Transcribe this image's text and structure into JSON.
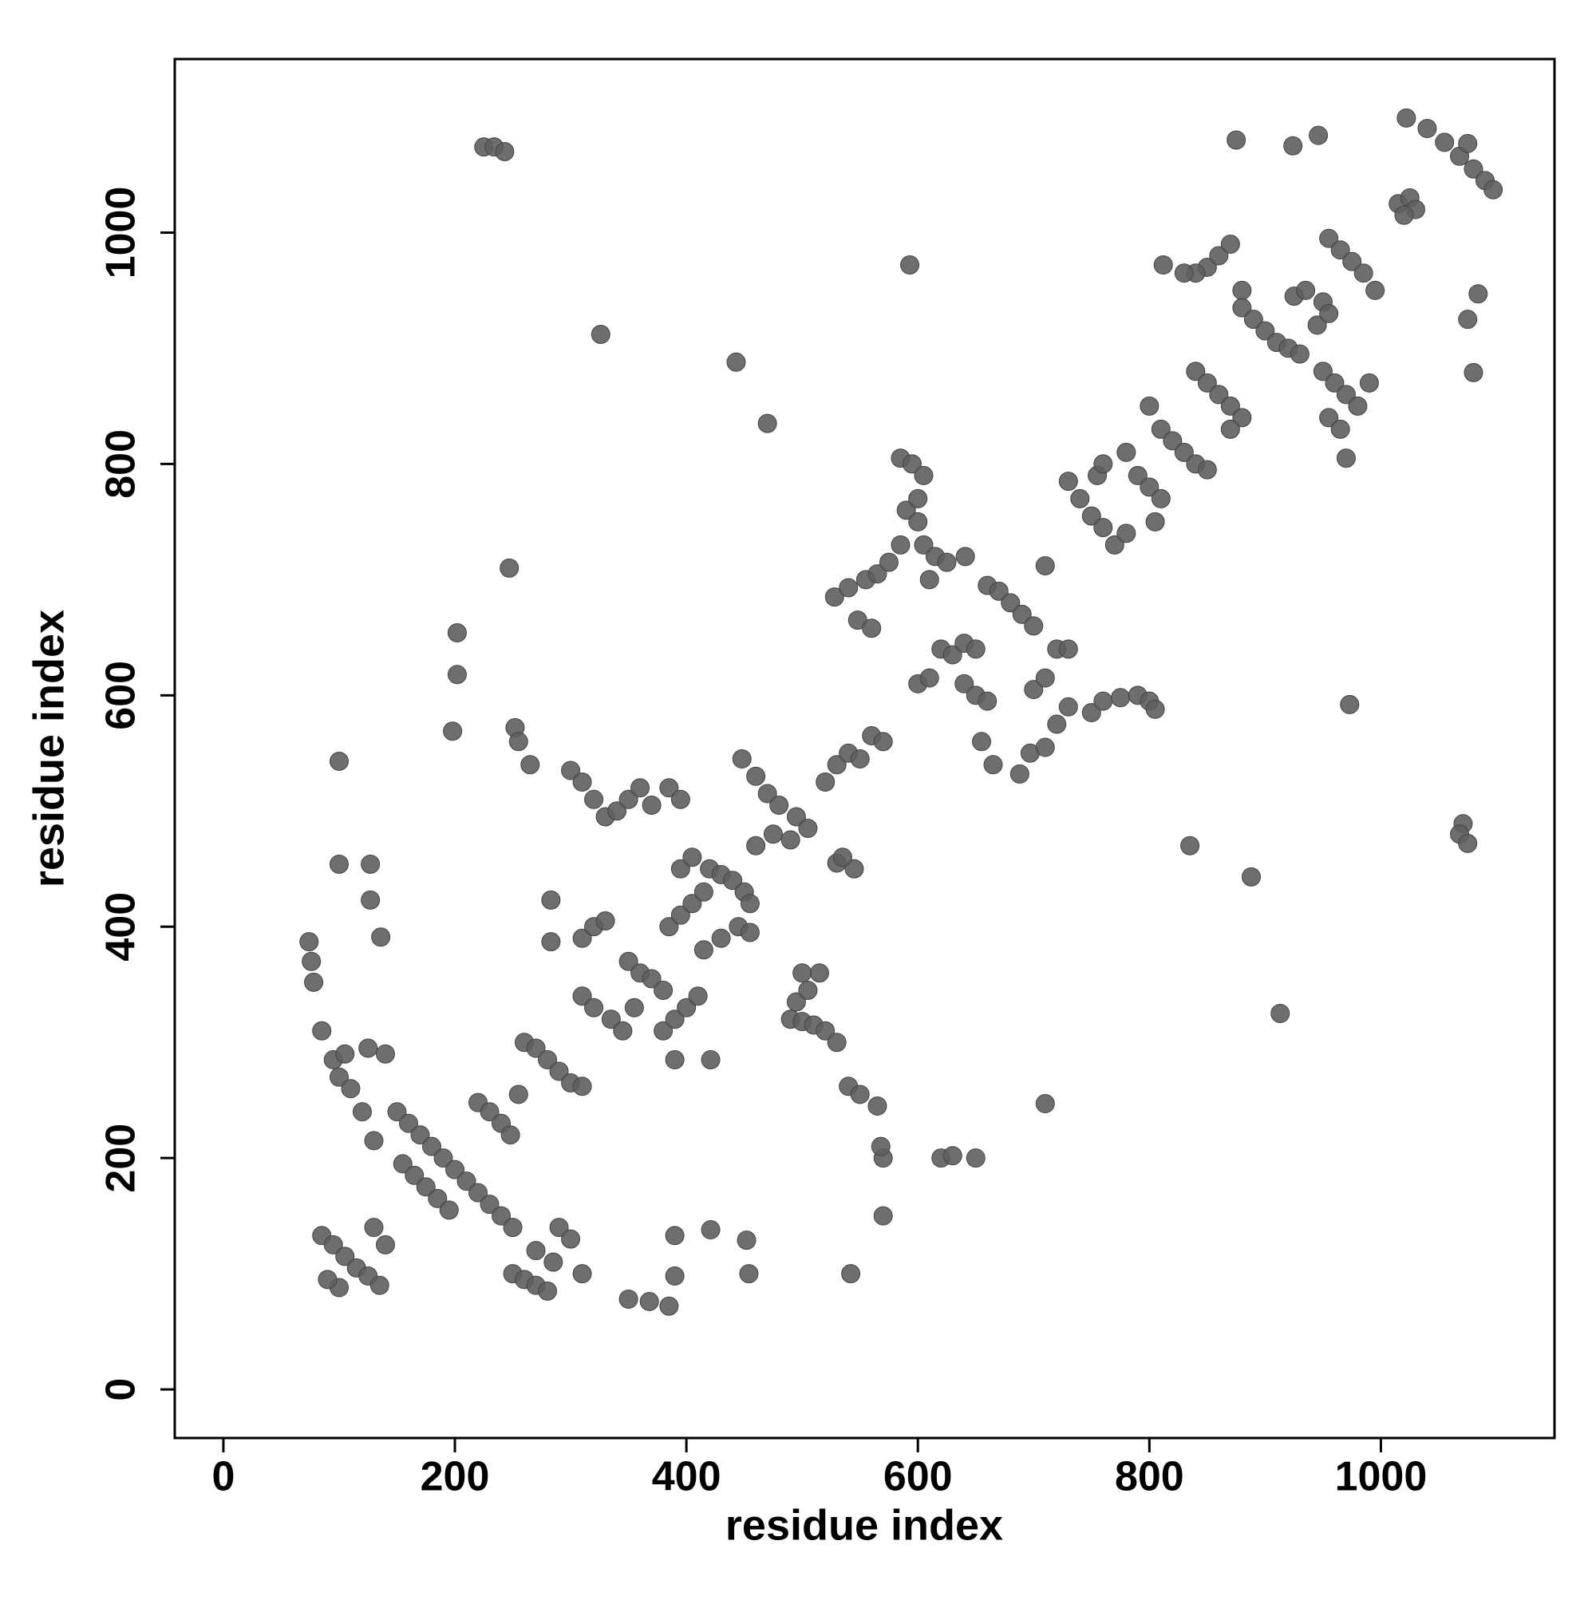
{
  "chart_data": {
    "type": "scatter",
    "xlabel": "residue index",
    "ylabel": "residue index",
    "color": "#5e5e5e",
    "xlim": [
      -42,
      1150
    ],
    "ylim": [
      -42,
      1150
    ],
    "xticks": [
      0,
      200,
      400,
      600,
      800,
      1000
    ],
    "yticks": [
      0,
      200,
      400,
      600,
      800,
      1000
    ],
    "x": [
      1022,
      1040,
      1055,
      1068,
      1080,
      1090,
      1097,
      1015,
      1025,
      1030,
      1020,
      875,
      924,
      946,
      1075,
      225,
      234,
      243,
      326,
      443,
      470,
      593,
      247,
      973,
      1071,
      1068,
      1075,
      913,
      835,
      888,
      710,
      1075,
      1084,
      1080,
      85,
      95,
      105,
      115,
      125,
      135,
      130,
      140,
      100,
      90,
      100,
      100,
      127,
      74,
      78,
      76,
      85,
      95,
      100,
      110,
      120,
      130,
      140,
      125,
      105,
      127,
      136,
      150,
      160,
      170,
      180,
      190,
      200,
      210,
      220,
      230,
      240,
      250,
      155,
      165,
      175,
      185,
      195,
      220,
      230,
      240,
      248,
      250,
      260,
      270,
      280,
      290,
      300,
      270,
      285,
      310,
      198,
      252,
      255,
      265,
      202,
      202,
      260,
      270,
      280,
      290,
      300,
      310,
      255,
      283,
      283,
      300,
      310,
      320,
      330,
      340,
      350,
      360,
      370,
      310,
      320,
      330,
      310,
      320,
      335,
      345,
      350,
      360,
      370,
      380,
      355,
      385,
      395,
      350,
      368,
      385,
      390,
      421,
      452,
      454,
      542,
      390,
      380,
      390,
      400,
      410,
      385,
      395,
      405,
      415,
      395,
      405,
      421,
      390,
      420,
      430,
      440,
      450,
      455,
      415,
      430,
      445,
      455,
      448,
      460,
      470,
      480,
      495,
      505,
      460,
      475,
      490,
      490,
      500,
      510,
      520,
      530,
      495,
      505,
      515,
      500,
      540,
      550,
      565,
      570,
      568,
      570,
      530,
      545,
      535,
      520,
      530,
      540,
      550,
      560,
      570,
      528,
      540,
      555,
      565,
      575,
      585,
      548,
      560,
      585,
      595,
      605,
      590,
      600,
      600,
      605,
      615,
      625,
      610,
      600,
      610,
      620,
      630,
      640,
      650,
      641,
      640,
      650,
      660,
      655,
      665,
      660,
      670,
      680,
      690,
      700,
      700,
      710,
      720,
      730,
      688,
      697,
      710,
      720,
      730,
      710,
      730,
      740,
      750,
      760,
      770,
      780,
      755,
      760,
      780,
      790,
      800,
      750,
      760,
      775,
      790,
      800,
      805,
      800,
      810,
      820,
      830,
      840,
      850,
      810,
      805,
      840,
      850,
      860,
      870,
      880,
      870,
      850,
      860,
      870,
      840,
      880,
      880,
      890,
      900,
      910,
      920,
      930,
      925,
      935,
      950,
      945,
      955,
      830,
      812,
      950,
      960,
      970,
      980,
      990,
      955,
      965,
      970,
      955,
      965,
      975,
      985,
      995,
      620,
      630,
      650
    ],
    "values": [
      1099,
      1090,
      1078,
      1066,
      1055,
      1045,
      1037,
      1025,
      1030,
      1020,
      1015,
      1080,
      1075,
      1084,
      1077,
      1074,
      1074,
      1070,
      912,
      888,
      835,
      972,
      710,
      592,
      489,
      480,
      472,
      325,
      470,
      443,
      247,
      925,
      947,
      879,
      133,
      125,
      115,
      105,
      98,
      90,
      140,
      125,
      88,
      95,
      543,
      454,
      454,
      387,
      352,
      370,
      310,
      285,
      270,
      260,
      240,
      215,
      290,
      295,
      290,
      423,
      391,
      240,
      230,
      220,
      210,
      200,
      190,
      180,
      170,
      160,
      150,
      140,
      195,
      185,
      175,
      165,
      155,
      248,
      240,
      230,
      220,
      100,
      95,
      90,
      85,
      140,
      130,
      120,
      110,
      100,
      569,
      572,
      560,
      540,
      618,
      654,
      300,
      295,
      285,
      275,
      265,
      262,
      255,
      423,
      387,
      535,
      525,
      510,
      495,
      500,
      510,
      520,
      505,
      390,
      400,
      405,
      340,
      330,
      320,
      310,
      370,
      360,
      355,
      345,
      330,
      520,
      510,
      78,
      76,
      72,
      133,
      138,
      129,
      100,
      100,
      98,
      310,
      320,
      330,
      340,
      400,
      410,
      420,
      430,
      450,
      460,
      285,
      285,
      450,
      445,
      440,
      430,
      420,
      380,
      390,
      400,
      395,
      545,
      530,
      515,
      505,
      495,
      485,
      470,
      480,
      475,
      320,
      318,
      315,
      310,
      300,
      335,
      345,
      360,
      360,
      262,
      255,
      245,
      200,
      210,
      150,
      455,
      450,
      460,
      525,
      540,
      550,
      545,
      565,
      560,
      685,
      693,
      700,
      705,
      715,
      730,
      665,
      658,
      805,
      800,
      790,
      760,
      770,
      750,
      730,
      720,
      715,
      700,
      610,
      615,
      640,
      635,
      645,
      640,
      720,
      610,
      600,
      595,
      560,
      540,
      695,
      690,
      680,
      670,
      660,
      605,
      615,
      640,
      640,
      532,
      550,
      555,
      575,
      590,
      712,
      785,
      770,
      755,
      745,
      730,
      740,
      790,
      800,
      810,
      790,
      780,
      585,
      595,
      598,
      600,
      595,
      588,
      850,
      830,
      820,
      810,
      800,
      795,
      770,
      750,
      880,
      870,
      860,
      850,
      840,
      830,
      970,
      980,
      990,
      965,
      950,
      935,
      925,
      915,
      905,
      900,
      895,
      945,
      950,
      940,
      920,
      930,
      965,
      972,
      880,
      870,
      860,
      850,
      870,
      840,
      830,
      805,
      995,
      985,
      975,
      965,
      950,
      200,
      202,
      200
    ]
  }
}
